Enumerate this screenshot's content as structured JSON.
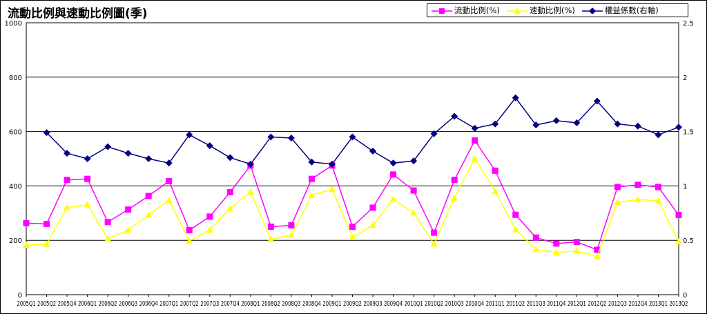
{
  "chart_data": {
    "type": "line",
    "title": "流動比例與速動比例圖(季)",
    "categories": [
      "2005Q1",
      "2005Q2",
      "2005Q4",
      "2006Q1",
      "2006Q2",
      "2006Q3",
      "2006Q4",
      "2007Q1",
      "2007Q2",
      "2007Q3",
      "2007Q4",
      "2008Q1",
      "2008Q2",
      "2008Q3",
      "2008Q4",
      "2009Q1",
      "2009Q2",
      "2009Q3",
      "2009Q4",
      "2010Q1",
      "2010Q2",
      "2010Q3",
      "2010Q4",
      "2011Q1",
      "2011Q2",
      "2011Q3",
      "2011Q4",
      "2012Q1",
      "2012Q2",
      "2012Q3",
      "2012Q4",
      "2013Q1",
      "2013Q2"
    ],
    "y_left": {
      "ylim": [
        0,
        1000
      ],
      "ticks": [
        0,
        200,
        400,
        600,
        800,
        1000
      ]
    },
    "y_right": {
      "ylim": [
        0,
        2.5
      ],
      "ticks": [
        0,
        0.5,
        1,
        1.5,
        2,
        2.5
      ]
    },
    "grid": true,
    "legend_position": "top-right",
    "series": [
      {
        "name": "流動比例(%)",
        "axis": "left",
        "color": "#ff00ff",
        "marker": "square",
        "values": [
          263,
          260,
          422,
          426,
          267,
          313,
          363,
          418,
          237,
          287,
          377,
          475,
          250,
          255,
          426,
          475,
          250,
          320,
          442,
          383,
          228,
          422,
          567,
          456,
          294,
          210,
          188,
          194,
          165,
          396,
          404,
          396,
          293
        ]
      },
      {
        "name": "速動比例(%)",
        "axis": "left",
        "color": "#ffff00",
        "marker": "triangle",
        "values": [
          182,
          186,
          320,
          331,
          206,
          237,
          293,
          347,
          198,
          238,
          317,
          378,
          204,
          219,
          366,
          387,
          211,
          255,
          352,
          301,
          187,
          356,
          501,
          380,
          240,
          167,
          155,
          161,
          140,
          340,
          350,
          345,
          195
        ]
      },
      {
        "name": "權益係數(右軸)",
        "axis": "right",
        "color": "#000080",
        "marker": "diamond",
        "values": [
          null,
          1.49,
          1.3,
          1.25,
          1.36,
          1.3,
          1.25,
          1.21,
          1.47,
          1.37,
          1.26,
          1.2,
          1.45,
          1.44,
          1.22,
          1.2,
          1.45,
          1.32,
          1.21,
          1.23,
          1.48,
          1.64,
          1.53,
          1.57,
          1.81,
          1.56,
          1.6,
          1.58,
          1.78,
          1.57,
          1.55,
          1.47,
          1.54
        ]
      }
    ]
  }
}
